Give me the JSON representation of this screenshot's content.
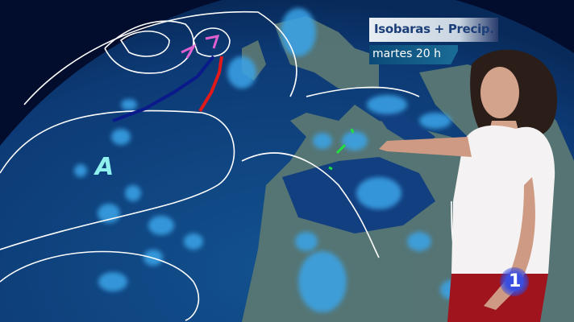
{
  "overlay": {
    "title": "Isobaras + Precip.",
    "time": "martes 20 h"
  },
  "map": {
    "pressure_labels": [
      "A"
    ],
    "ocean_color": "#0e3f7e",
    "land_color": "#5d7a76",
    "precip_color": "#3aa4e8",
    "isobar_color": "#ffffff",
    "warm_front_color": "#e01a1a",
    "cold_front_color": "#0a1a8a"
  },
  "channel_logo": {
    "text": "1",
    "icon": "la1-logo"
  }
}
